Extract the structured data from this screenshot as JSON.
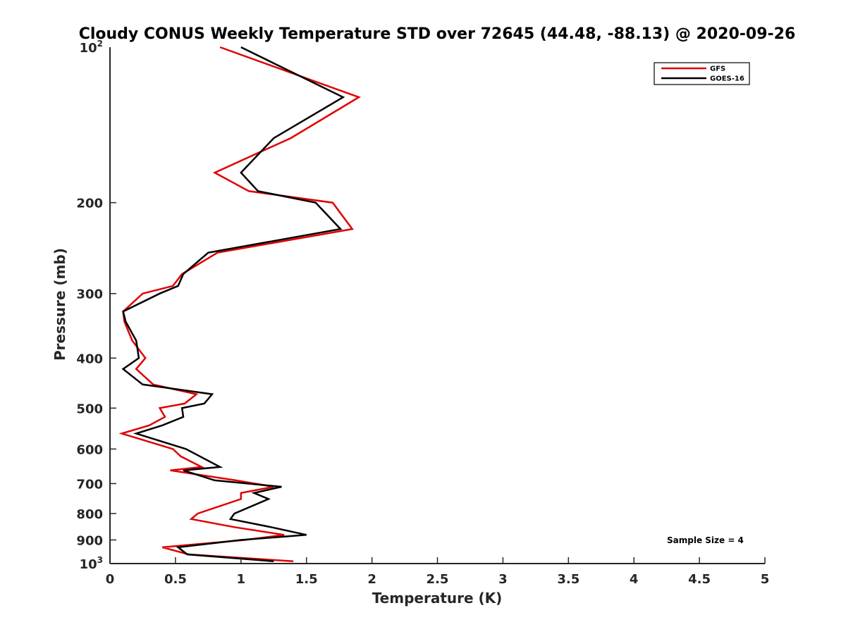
{
  "chart_data": {
    "type": "line",
    "title": "Cloudy CONUS Weekly Temperature STD over 72645 (44.48, -88.13) @ 2020-09-26",
    "xlabel": "Temperature (K)",
    "ylabel": "Pressure (mb)",
    "xlim": [
      0,
      5
    ],
    "ylim": [
      100,
      1000
    ],
    "y_scale": "log",
    "y_reversed": true,
    "x_ticks": [
      "0",
      "0.5",
      "1",
      "1.5",
      "2",
      "2.5",
      "3",
      "3.5",
      "4",
      "4.5",
      "5"
    ],
    "y_ticks": [
      {
        "value": 200,
        "label": "200"
      },
      {
        "value": 300,
        "label": "300"
      },
      {
        "value": 400,
        "label": "400"
      },
      {
        "value": 500,
        "label": "500"
      },
      {
        "value": 600,
        "label": "600"
      },
      {
        "value": 700,
        "label": "700"
      },
      {
        "value": 800,
        "label": "800"
      },
      {
        "value": 900,
        "label": "900"
      }
    ],
    "y_edge_labels": [
      {
        "value": 100,
        "base": "10",
        "exp": "2"
      },
      {
        "value": 1000,
        "base": "10",
        "exp": "3"
      }
    ],
    "grid": false,
    "legend_position": "top-right",
    "series": [
      {
        "name": "GFS",
        "color": "#e00000",
        "points": [
          [
            0.84,
            100
          ],
          [
            1.9,
            125
          ],
          [
            1.38,
            150
          ],
          [
            0.8,
            175
          ],
          [
            1.06,
            190
          ],
          [
            1.7,
            200
          ],
          [
            1.85,
            225
          ],
          [
            0.82,
            250
          ],
          [
            0.55,
            275
          ],
          [
            0.48,
            290
          ],
          [
            0.25,
            300
          ],
          [
            0.1,
            325
          ],
          [
            0.11,
            340
          ],
          [
            0.17,
            370
          ],
          [
            0.27,
            400
          ],
          [
            0.2,
            420
          ],
          [
            0.33,
            450
          ],
          [
            0.66,
            470
          ],
          [
            0.57,
            490
          ],
          [
            0.38,
            500
          ],
          [
            0.42,
            520
          ],
          [
            0.3,
            540
          ],
          [
            0.09,
            560
          ],
          [
            0.48,
            600
          ],
          [
            0.54,
            620
          ],
          [
            0.7,
            650
          ],
          [
            0.46,
            660
          ],
          [
            0.96,
            690
          ],
          [
            1.25,
            710
          ],
          [
            1.0,
            730
          ],
          [
            1.0,
            750
          ],
          [
            0.67,
            800
          ],
          [
            0.62,
            820
          ],
          [
            0.95,
            850
          ],
          [
            1.33,
            880
          ],
          [
            1.03,
            900
          ],
          [
            0.4,
            930
          ],
          [
            0.6,
            960
          ],
          [
            1.4,
            990
          ]
        ]
      },
      {
        "name": "GOES-16",
        "color": "#000000",
        "points": [
          [
            1.0,
            100
          ],
          [
            1.78,
            125
          ],
          [
            1.25,
            150
          ],
          [
            1.0,
            175
          ],
          [
            1.13,
            190
          ],
          [
            1.57,
            200
          ],
          [
            1.76,
            225
          ],
          [
            0.75,
            250
          ],
          [
            0.56,
            275
          ],
          [
            0.52,
            290
          ],
          [
            0.38,
            300
          ],
          [
            0.1,
            325
          ],
          [
            0.12,
            340
          ],
          [
            0.2,
            370
          ],
          [
            0.22,
            400
          ],
          [
            0.1,
            420
          ],
          [
            0.25,
            450
          ],
          [
            0.78,
            470
          ],
          [
            0.72,
            490
          ],
          [
            0.55,
            500
          ],
          [
            0.56,
            520
          ],
          [
            0.4,
            540
          ],
          [
            0.2,
            560
          ],
          [
            0.58,
            600
          ],
          [
            0.84,
            650
          ],
          [
            0.56,
            660
          ],
          [
            0.8,
            690
          ],
          [
            1.31,
            710
          ],
          [
            1.1,
            730
          ],
          [
            1.21,
            750
          ],
          [
            0.95,
            800
          ],
          [
            0.92,
            820
          ],
          [
            1.23,
            850
          ],
          [
            1.5,
            880
          ],
          [
            1.0,
            900
          ],
          [
            0.52,
            930
          ],
          [
            0.59,
            960
          ],
          [
            1.25,
            990
          ]
        ]
      }
    ],
    "annotation": "Sample Size = 4"
  }
}
